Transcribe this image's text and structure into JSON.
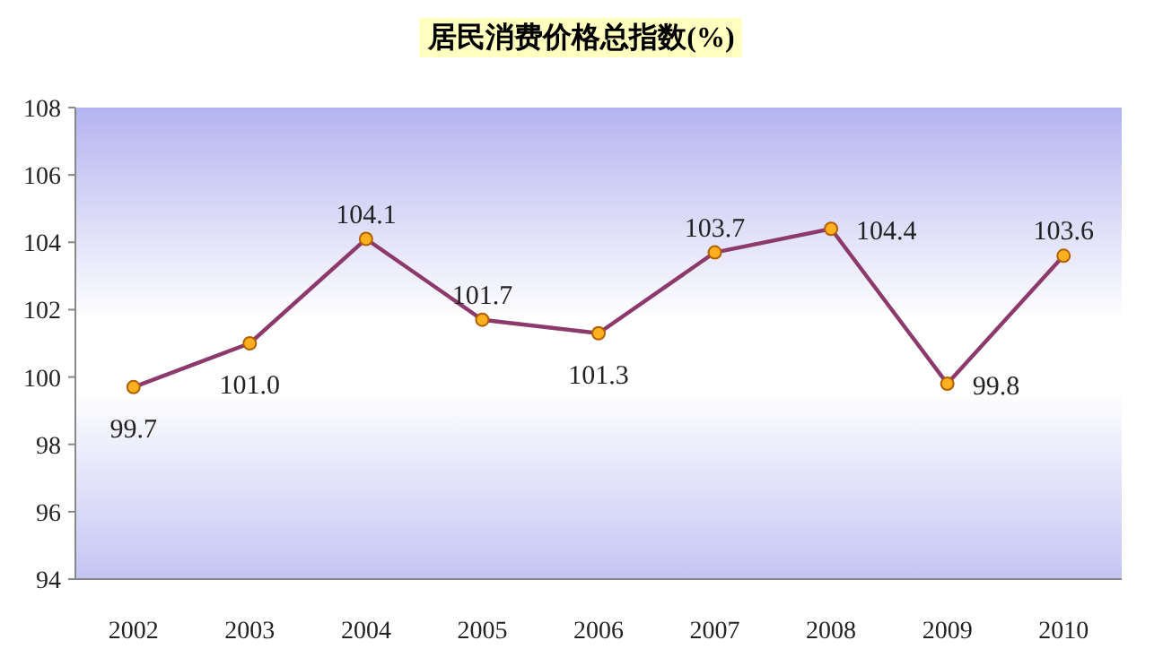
{
  "chart_data": {
    "type": "line",
    "title": "居民消费价格总指数(%)",
    "categories": [
      "2002",
      "2003",
      "2004",
      "2005",
      "2006",
      "2007",
      "2008",
      "2009",
      "2010"
    ],
    "series": [
      {
        "color": "#8b3a6b",
        "values": [
          99.7,
          101.0,
          104.1,
          101.7,
          101.3,
          103.7,
          104.4,
          99.8,
          103.6
        ]
      }
    ],
    "ylim": [
      94,
      108
    ],
    "yticks": [
      94,
      96,
      98,
      100,
      102,
      104,
      106,
      108
    ],
    "value_labels": [
      "99.7",
      "101.0",
      "104.1",
      "101.7",
      "101.3",
      "103.7",
      "104.4",
      "99.8",
      "103.6"
    ],
    "marker": "circle",
    "grid": false
  }
}
